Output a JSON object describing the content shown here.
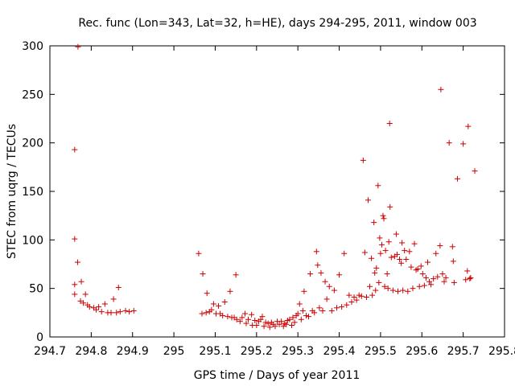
{
  "chart_data": {
    "type": "scatter",
    "title": "Rec. func (Lon=343, Lat=32, h=HE), days 294-295, 2011, window 003",
    "xlabel": "GPS time / Days of year 2011",
    "ylabel": "STEC from uqrg / TECUs",
    "xlim": [
      294.7,
      295.8
    ],
    "ylim": [
      0,
      300
    ],
    "xticks": [
      "294.7",
      "294.8",
      "294.9",
      "295",
      "295.1",
      "295.2",
      "295.3",
      "295.4",
      "295.5",
      "295.6",
      "295.7",
      "295.8"
    ],
    "yticks": [
      "0",
      "50",
      "100",
      "150",
      "200",
      "250",
      "300"
    ],
    "grid": false,
    "legend": "none",
    "marker": "+",
    "color": "#cc0000",
    "points": [
      [
        294.76,
        44
      ],
      [
        294.76,
        54
      ],
      [
        294.76,
        101
      ],
      [
        294.76,
        193
      ],
      [
        294.767,
        77
      ],
      [
        294.768,
        299
      ],
      [
        294.774,
        37
      ],
      [
        294.776,
        57
      ],
      [
        294.781,
        35
      ],
      [
        294.786,
        44
      ],
      [
        294.791,
        33
      ],
      [
        294.796,
        31
      ],
      [
        294.806,
        30
      ],
      [
        294.812,
        28
      ],
      [
        294.818,
        31
      ],
      [
        294.825,
        26
      ],
      [
        294.833,
        34
      ],
      [
        294.84,
        25
      ],
      [
        294.848,
        25
      ],
      [
        294.854,
        39
      ],
      [
        294.861,
        25
      ],
      [
        294.866,
        51
      ],
      [
        294.87,
        26
      ],
      [
        294.883,
        27
      ],
      [
        294.892,
        26
      ],
      [
        294.903,
        27
      ],
      [
        295.06,
        86
      ],
      [
        295.068,
        24
      ],
      [
        295.07,
        65
      ],
      [
        295.078,
        25
      ],
      [
        295.08,
        45
      ],
      [
        295.086,
        26
      ],
      [
        295.091,
        28
      ],
      [
        295.096,
        34
      ],
      [
        295.102,
        24
      ],
      [
        295.108,
        32
      ],
      [
        295.112,
        24
      ],
      [
        295.118,
        22
      ],
      [
        295.123,
        36
      ],
      [
        295.13,
        21
      ],
      [
        295.136,
        47
      ],
      [
        295.14,
        20
      ],
      [
        295.146,
        20
      ],
      [
        295.15,
        64
      ],
      [
        295.152,
        18
      ],
      [
        295.16,
        16
      ],
      [
        295.165,
        20
      ],
      [
        295.172,
        24
      ],
      [
        295.175,
        14
      ],
      [
        295.18,
        18
      ],
      [
        295.188,
        23
      ],
      [
        295.19,
        12
      ],
      [
        295.196,
        17
      ],
      [
        295.2,
        12
      ],
      [
        295.205,
        16
      ],
      [
        295.21,
        18
      ],
      [
        295.214,
        21
      ],
      [
        295.218,
        11
      ],
      [
        295.222,
        15
      ],
      [
        295.228,
        14
      ],
      [
        295.232,
        10
      ],
      [
        295.236,
        15
      ],
      [
        295.24,
        13
      ],
      [
        295.245,
        11
      ],
      [
        295.25,
        16
      ],
      [
        295.255,
        13
      ],
      [
        295.26,
        16
      ],
      [
        295.265,
        11
      ],
      [
        295.268,
        14
      ],
      [
        295.272,
        13
      ],
      [
        295.275,
        17
      ],
      [
        295.28,
        18
      ],
      [
        295.285,
        12
      ],
      [
        295.288,
        20
      ],
      [
        295.292,
        15
      ],
      [
        295.296,
        22
      ],
      [
        295.3,
        24
      ],
      [
        295.304,
        34
      ],
      [
        295.308,
        18
      ],
      [
        295.312,
        27
      ],
      [
        295.315,
        47
      ],
      [
        295.32,
        22
      ],
      [
        295.326,
        21
      ],
      [
        295.33,
        65
      ],
      [
        295.335,
        27
      ],
      [
        295.34,
        25
      ],
      [
        295.345,
        88
      ],
      [
        295.348,
        74
      ],
      [
        295.352,
        30
      ],
      [
        295.356,
        66
      ],
      [
        295.36,
        27
      ],
      [
        295.366,
        57
      ],
      [
        295.37,
        39
      ],
      [
        295.376,
        52
      ],
      [
        295.382,
        27
      ],
      [
        295.388,
        48
      ],
      [
        295.394,
        30
      ],
      [
        295.4,
        64
      ],
      [
        295.406,
        31
      ],
      [
        295.412,
        86
      ],
      [
        295.418,
        33
      ],
      [
        295.424,
        43
      ],
      [
        295.43,
        36
      ],
      [
        295.436,
        41
      ],
      [
        295.442,
        38
      ],
      [
        295.448,
        43
      ],
      [
        295.454,
        42
      ],
      [
        295.458,
        182
      ],
      [
        295.462,
        87
      ],
      [
        295.466,
        41
      ],
      [
        295.47,
        141
      ],
      [
        295.474,
        52
      ],
      [
        295.478,
        81
      ],
      [
        295.48,
        43
      ],
      [
        295.484,
        118
      ],
      [
        295.486,
        66
      ],
      [
        295.488,
        48
      ],
      [
        295.49,
        71
      ],
      [
        295.494,
        156
      ],
      [
        295.496,
        56
      ],
      [
        295.498,
        102
      ],
      [
        295.5,
        86
      ],
      [
        295.503,
        95
      ],
      [
        295.506,
        125
      ],
      [
        295.508,
        122
      ],
      [
        295.51,
        52
      ],
      [
        295.512,
        89
      ],
      [
        295.516,
        65
      ],
      [
        295.518,
        50
      ],
      [
        295.52,
        98
      ],
      [
        295.522,
        220
      ],
      [
        295.523,
        134
      ],
      [
        295.526,
        82
      ],
      [
        295.53,
        48
      ],
      [
        295.534,
        83
      ],
      [
        295.538,
        106
      ],
      [
        295.54,
        85
      ],
      [
        295.542,
        47
      ],
      [
        295.546,
        80
      ],
      [
        295.55,
        76
      ],
      [
        295.552,
        97
      ],
      [
        295.554,
        48
      ],
      [
        295.558,
        89
      ],
      [
        295.562,
        80
      ],
      [
        295.566,
        47
      ],
      [
        295.57,
        88
      ],
      [
        295.574,
        72
      ],
      [
        295.578,
        50
      ],
      [
        295.582,
        96
      ],
      [
        295.586,
        69
      ],
      [
        295.59,
        70
      ],
      [
        295.594,
        52
      ],
      [
        295.598,
        73
      ],
      [
        295.602,
        65
      ],
      [
        295.606,
        53
      ],
      [
        295.61,
        61
      ],
      [
        295.614,
        77
      ],
      [
        295.618,
        57
      ],
      [
        295.622,
        54
      ],
      [
        295.628,
        60
      ],
      [
        295.634,
        86
      ],
      [
        295.638,
        62
      ],
      [
        295.644,
        94
      ],
      [
        295.646,
        255
      ],
      [
        295.65,
        65
      ],
      [
        295.654,
        57
      ],
      [
        295.658,
        61
      ],
      [
        295.666,
        200
      ],
      [
        295.674,
        93
      ],
      [
        295.676,
        78
      ],
      [
        295.678,
        56
      ],
      [
        295.686,
        163
      ],
      [
        295.7,
        199
      ],
      [
        295.706,
        59
      ],
      [
        295.71,
        68
      ],
      [
        295.712,
        217
      ],
      [
        295.716,
        60
      ],
      [
        295.718,
        61
      ],
      [
        295.728,
        171
      ]
    ]
  }
}
